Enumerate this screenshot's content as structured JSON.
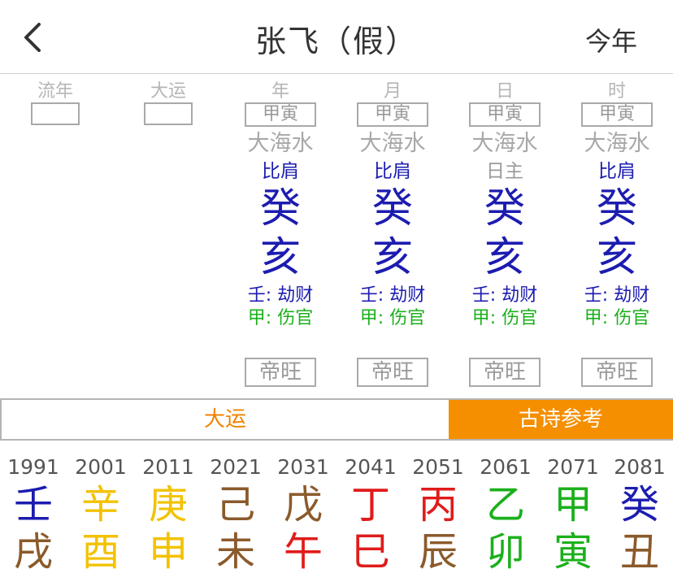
{
  "header": {
    "title": "张飞（假）",
    "right_button": "今年",
    "back_icon": "chevron-left-icon"
  },
  "empty_pillars": [
    {
      "label": "流年"
    },
    {
      "label": "大运"
    }
  ],
  "pillars": [
    {
      "label": "年",
      "ganzhi": "甲寅",
      "nayin": "大海水",
      "god": "比肩",
      "stem": "癸",
      "branch": "亥",
      "hidden1": "壬: 劫财",
      "hidden2": "甲: 伤官",
      "state": "帝旺"
    },
    {
      "label": "月",
      "ganzhi": "甲寅",
      "nayin": "大海水",
      "god": "比肩",
      "stem": "癸",
      "branch": "亥",
      "hidden1": "壬: 劫财",
      "hidden2": "甲: 伤官",
      "state": "帝旺"
    },
    {
      "label": "日",
      "ganzhi": "甲寅",
      "nayin": "大海水",
      "god": "日主",
      "stem": "癸",
      "branch": "亥",
      "hidden1": "壬: 劫财",
      "hidden2": "甲: 伤官",
      "state": "帝旺"
    },
    {
      "label": "时",
      "ganzhi": "甲寅",
      "nayin": "大海水",
      "god": "比肩",
      "stem": "癸",
      "branch": "亥",
      "hidden1": "壬: 劫财",
      "hidden2": "甲: 伤官",
      "state": "帝旺"
    }
  ],
  "tabs": [
    {
      "label": "大运",
      "active": false
    },
    {
      "label": "古诗参考",
      "active": true
    }
  ],
  "colors": {
    "accent": "#f58f00",
    "water": "#1c1cb0",
    "metal": "#f2c200",
    "earth": "#8b5a2b",
    "fire": "#e01b1b",
    "wood": "#1bb01b"
  },
  "dayun": [
    {
      "year": "1991",
      "stem": "壬",
      "branch": "戌",
      "stem_color": "#1c1cb0",
      "branch_color": "#8b5a2b"
    },
    {
      "year": "2001",
      "stem": "辛",
      "branch": "酉",
      "stem_color": "#f2c200",
      "branch_color": "#f2c200"
    },
    {
      "year": "2011",
      "stem": "庚",
      "branch": "申",
      "stem_color": "#f2c200",
      "branch_color": "#f2c200"
    },
    {
      "year": "2021",
      "stem": "己",
      "branch": "未",
      "stem_color": "#8b5a2b",
      "branch_color": "#8b5a2b"
    },
    {
      "year": "2031",
      "stem": "戊",
      "branch": "午",
      "stem_color": "#8b5a2b",
      "branch_color": "#e01b1b"
    },
    {
      "year": "2041",
      "stem": "丁",
      "branch": "巳",
      "stem_color": "#e01b1b",
      "branch_color": "#e01b1b"
    },
    {
      "year": "2051",
      "stem": "丙",
      "branch": "辰",
      "stem_color": "#e01b1b",
      "branch_color": "#8b5a2b"
    },
    {
      "year": "2061",
      "stem": "乙",
      "branch": "卯",
      "stem_color": "#1bb01b",
      "branch_color": "#1bb01b"
    },
    {
      "year": "2071",
      "stem": "甲",
      "branch": "寅",
      "stem_color": "#1bb01b",
      "branch_color": "#1bb01b"
    },
    {
      "year": "2081",
      "stem": "癸",
      "branch": "丑",
      "stem_color": "#1c1cb0",
      "branch_color": "#8b5a2b"
    }
  ]
}
